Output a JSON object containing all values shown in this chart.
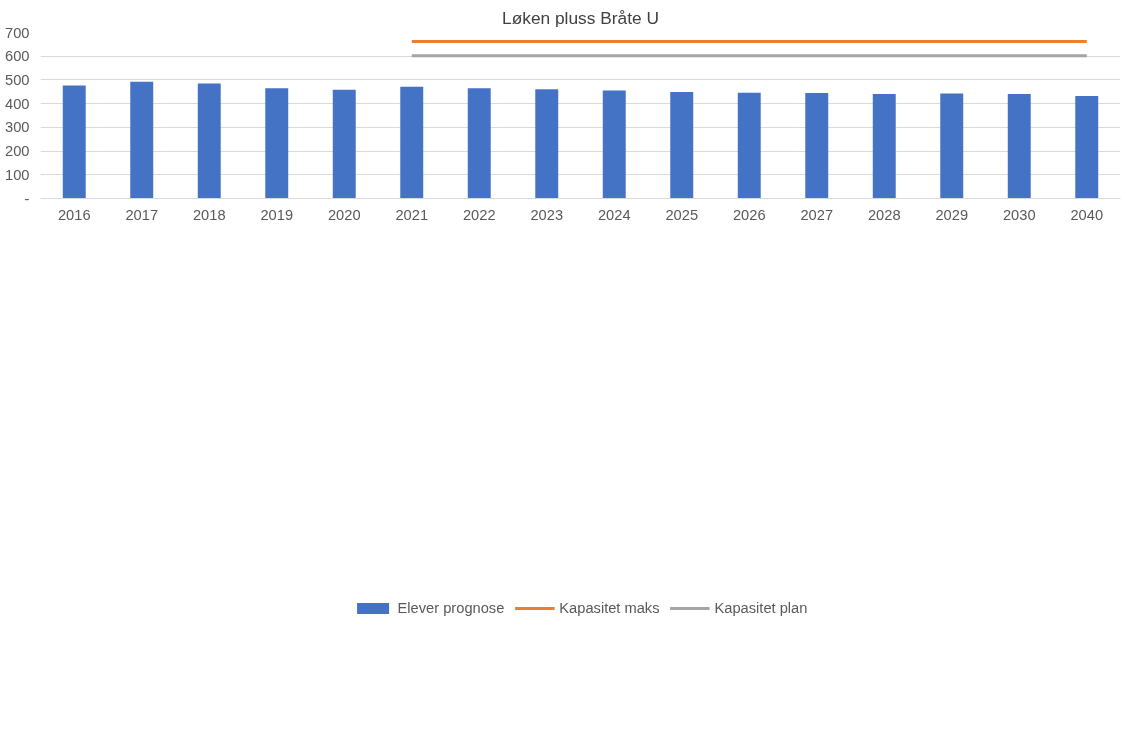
{
  "chart_data": {
    "type": "bar",
    "title": "Løken pluss Bråte U",
    "categories": [
      "2016",
      "2017",
      "2018",
      "2019",
      "2020",
      "2021",
      "2022",
      "2023",
      "2024",
      "2025",
      "2026",
      "2027",
      "2028",
      "2029",
      "2030",
      "2040"
    ],
    "series": [
      {
        "name": "Elever prognose",
        "color": "#4472c4",
        "values": [
          477,
          492,
          485,
          465,
          459,
          471,
          465,
          461,
          455,
          449,
          446,
          445,
          441,
          443,
          441,
          432
        ]
      },
      {
        "name": "Kapasitet maks",
        "type": "line",
        "color": "#ed7d31",
        "values": [
          null,
          null,
          null,
          null,
          null,
          662,
          662,
          662,
          662,
          662,
          662,
          662,
          662,
          662,
          662,
          662
        ]
      },
      {
        "name": "Kapasitet plan",
        "type": "line",
        "color": "#a5a5a5",
        "values": [
          null,
          null,
          null,
          null,
          null,
          602,
          602,
          602,
          602,
          602,
          602,
          602,
          602,
          602,
          602,
          602
        ]
      }
    ],
    "ylim": [
      0,
      700
    ],
    "yticks": [
      {
        "value": 0,
        "label": "-"
      },
      100,
      200,
      300,
      400,
      500,
      600,
      700
    ],
    "grid": "y",
    "legend": "bottom"
  }
}
